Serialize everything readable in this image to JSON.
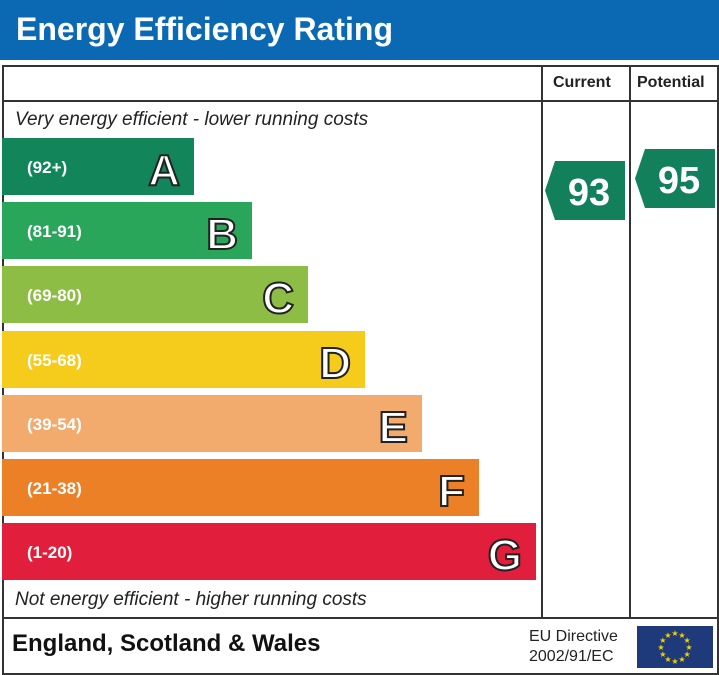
{
  "title": "Energy Efficiency Rating",
  "columns": {
    "current": "Current",
    "potential": "Potential"
  },
  "top_note": "Very energy efficient - lower running costs",
  "bottom_note": "Not energy efficient - higher running costs",
  "footer": {
    "region": "England, Scotland & Wales",
    "directive_line1": "EU Directive",
    "directive_line2": "2002/91/EC",
    "flag_icon": "eu-flag-icon"
  },
  "chart_data": {
    "type": "bar",
    "title": "Energy Efficiency Rating",
    "bands": [
      {
        "letter": "A",
        "range": "(92+)",
        "color": "#12855a"
      },
      {
        "letter": "B",
        "range": "(81-91)",
        "color": "#29a65a"
      },
      {
        "letter": "C",
        "range": "(69-80)",
        "color": "#8dbd44"
      },
      {
        "letter": "D",
        "range": "(55-68)",
        "color": "#f5cc1c"
      },
      {
        "letter": "E",
        "range": "(39-54)",
        "color": "#f2aa6d"
      },
      {
        "letter": "F",
        "range": "(21-38)",
        "color": "#ec8027"
      },
      {
        "letter": "G",
        "range": "(1-20)",
        "color": "#e11f3c"
      }
    ],
    "current": {
      "value": 93,
      "band": "A",
      "color": "#12805a"
    },
    "potential": {
      "value": 95,
      "band": "A",
      "color": "#12805a"
    }
  }
}
